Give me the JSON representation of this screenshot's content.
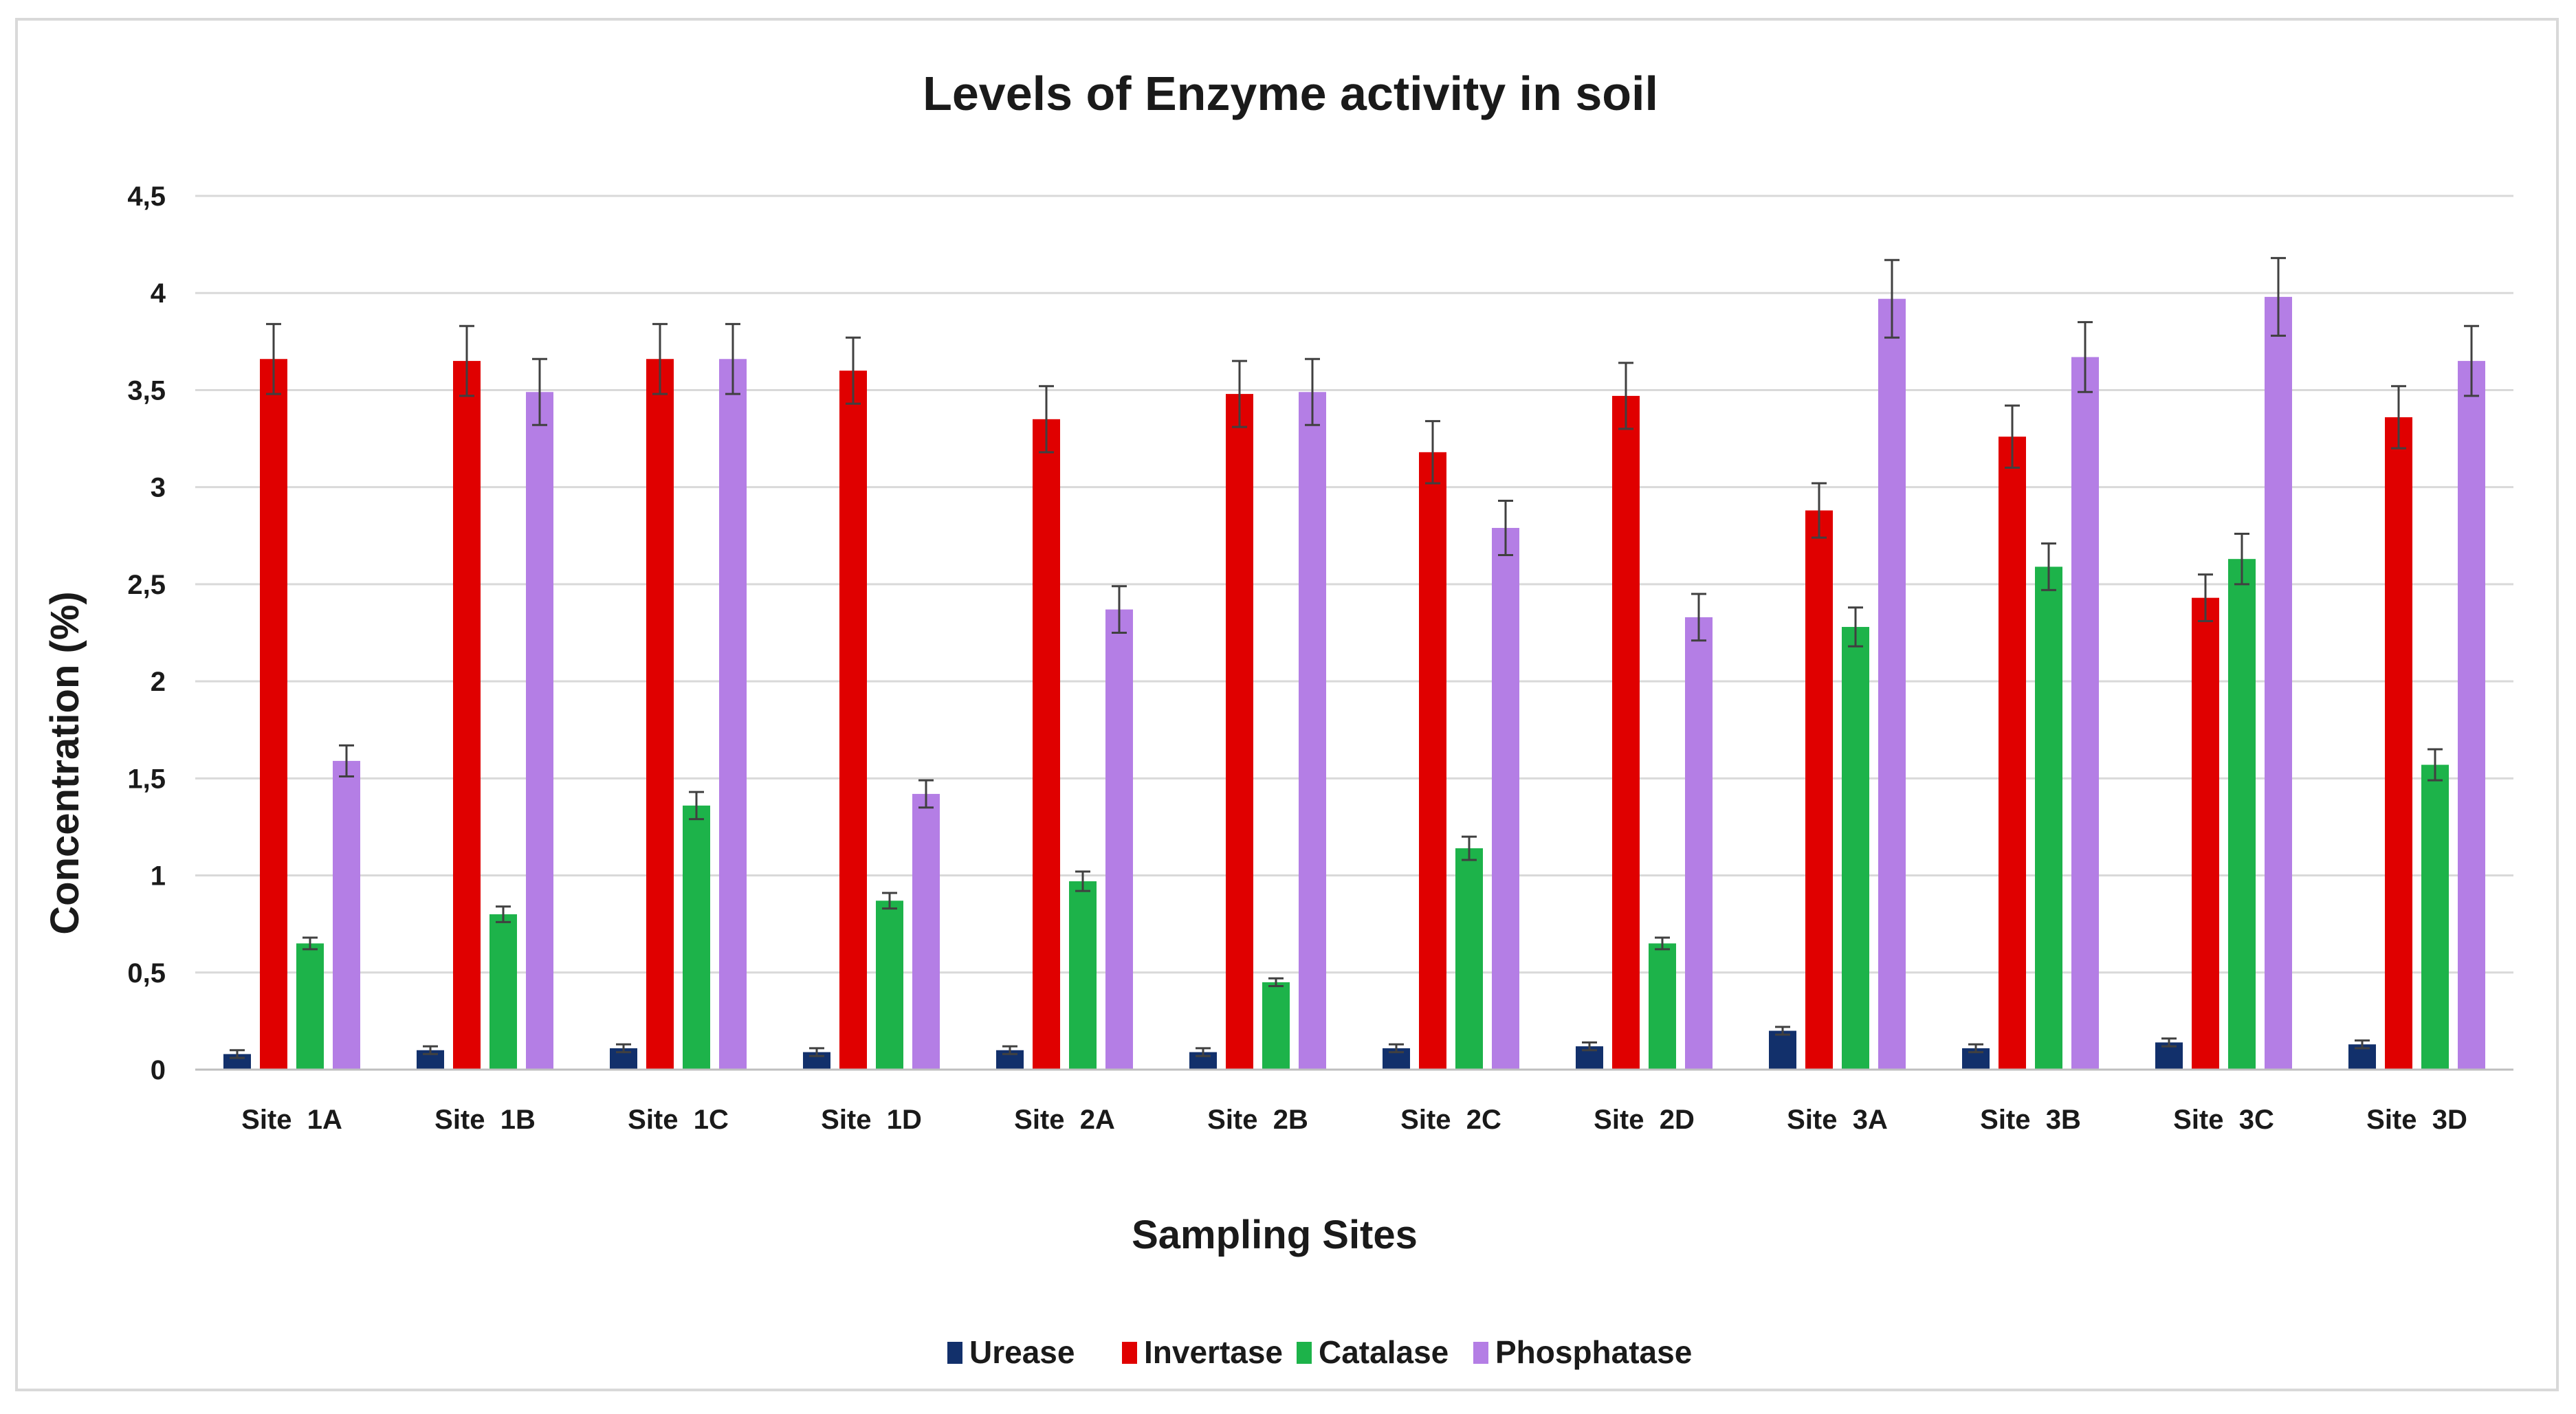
{
  "chart_data": {
    "type": "bar",
    "title": "Levels of Enzyme activity in soil",
    "xlabel": "Sampling Sites",
    "ylabel": "Concentration (%)",
    "ylim": [
      0,
      4.5
    ],
    "yticks": [
      0,
      0.5,
      1,
      1.5,
      2,
      2.5,
      3,
      3.5,
      4,
      4.5
    ],
    "ytick_labels": [
      "0",
      "0,5",
      "1",
      "1,5",
      "2",
      "2,5",
      "3",
      "3,5",
      "4",
      "4,5"
    ],
    "grid": true,
    "legend_position": "bottom",
    "categories": [
      "Site  1A",
      "Site  1B",
      "Site  1C",
      "Site  1D",
      "Site  2A",
      "Site  2B",
      "Site  2C",
      "Site  2D",
      "Site  3A",
      "Site  3B",
      "Site  3C",
      "Site  3D"
    ],
    "series": [
      {
        "name": "Urease",
        "color": "#12306b",
        "values": [
          0.08,
          0.1,
          0.11,
          0.09,
          0.1,
          0.09,
          0.11,
          0.12,
          0.2,
          0.11,
          0.14,
          0.13
        ],
        "errors": [
          0.02,
          0.02,
          0.02,
          0.02,
          0.02,
          0.02,
          0.02,
          0.02,
          0.02,
          0.02,
          0.02,
          0.02
        ]
      },
      {
        "name": "Invertase",
        "color": "#e00000",
        "values": [
          3.66,
          3.65,
          3.66,
          3.6,
          3.35,
          3.48,
          3.18,
          3.47,
          2.88,
          3.26,
          2.43,
          3.36
        ],
        "errors": [
          0.18,
          0.18,
          0.18,
          0.17,
          0.17,
          0.17,
          0.16,
          0.17,
          0.14,
          0.16,
          0.12,
          0.16
        ]
      },
      {
        "name": "Catalase",
        "color": "#1db34a",
        "values": [
          0.65,
          0.8,
          1.36,
          0.87,
          0.97,
          0.45,
          1.14,
          0.65,
          2.28,
          2.59,
          2.63,
          1.57
        ],
        "errors": [
          0.03,
          0.04,
          0.07,
          0.04,
          0.05,
          0.02,
          0.06,
          0.03,
          0.1,
          0.12,
          0.13,
          0.08
        ]
      },
      {
        "name": "Phosphatase",
        "color": "#b47ee5",
        "values": [
          1.59,
          3.49,
          3.66,
          1.42,
          2.37,
          3.49,
          2.79,
          2.33,
          3.97,
          3.67,
          3.98,
          3.65
        ],
        "errors": [
          0.08,
          0.17,
          0.18,
          0.07,
          0.12,
          0.17,
          0.14,
          0.12,
          0.2,
          0.18,
          0.2,
          0.18
        ]
      }
    ]
  }
}
